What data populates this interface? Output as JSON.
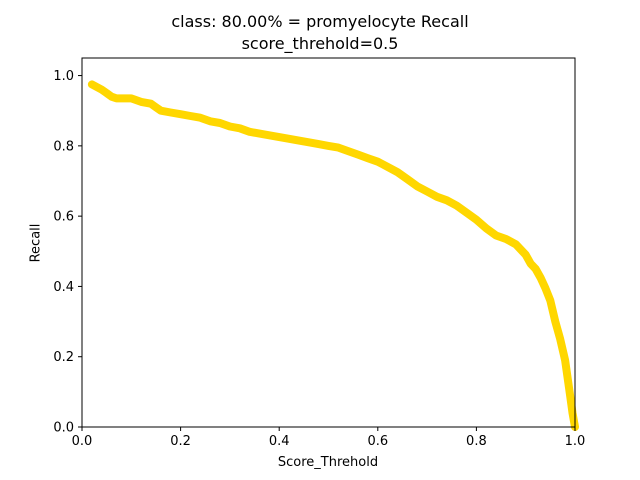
{
  "chart_data": {
    "type": "line",
    "title": "class: 80.00% = promyelocyte Recall",
    "subtitle": "score_threhold=0.5",
    "xlabel": "Score_Threhold",
    "ylabel": "Recall",
    "xlim": [
      0.0,
      1.0
    ],
    "ylim": [
      0.0,
      1.05
    ],
    "xticks": [
      "0.0",
      "0.2",
      "0.4",
      "0.6",
      "0.8",
      "1.0"
    ],
    "yticks": [
      "0.0",
      "0.2",
      "0.4",
      "0.6",
      "0.8",
      "1.0"
    ],
    "grid": false,
    "legend": "none",
    "series": [
      {
        "color": "#ffd700",
        "x": [
          0.02,
          0.04,
          0.05,
          0.06,
          0.07,
          0.08,
          0.1,
          0.12,
          0.14,
          0.15,
          0.16,
          0.18,
          0.2,
          0.22,
          0.24,
          0.26,
          0.28,
          0.3,
          0.32,
          0.34,
          0.36,
          0.38,
          0.4,
          0.42,
          0.44,
          0.46,
          0.48,
          0.5,
          0.52,
          0.54,
          0.56,
          0.58,
          0.6,
          0.62,
          0.64,
          0.66,
          0.68,
          0.7,
          0.72,
          0.74,
          0.76,
          0.78,
          0.8,
          0.82,
          0.84,
          0.86,
          0.88,
          0.9,
          0.91,
          0.92,
          0.93,
          0.94,
          0.95,
          0.96,
          0.97,
          0.98,
          0.985,
          0.99,
          0.995,
          1.0
        ],
        "y": [
          0.975,
          0.96,
          0.95,
          0.94,
          0.935,
          0.935,
          0.935,
          0.925,
          0.92,
          0.91,
          0.9,
          0.895,
          0.89,
          0.885,
          0.88,
          0.87,
          0.865,
          0.855,
          0.85,
          0.84,
          0.835,
          0.83,
          0.825,
          0.82,
          0.815,
          0.81,
          0.805,
          0.8,
          0.795,
          0.785,
          0.775,
          0.765,
          0.755,
          0.74,
          0.725,
          0.705,
          0.685,
          0.67,
          0.655,
          0.645,
          0.63,
          0.61,
          0.59,
          0.565,
          0.545,
          0.535,
          0.52,
          0.49,
          0.465,
          0.45,
          0.425,
          0.395,
          0.36,
          0.3,
          0.25,
          0.19,
          0.14,
          0.09,
          0.04,
          0.0
        ]
      }
    ]
  }
}
